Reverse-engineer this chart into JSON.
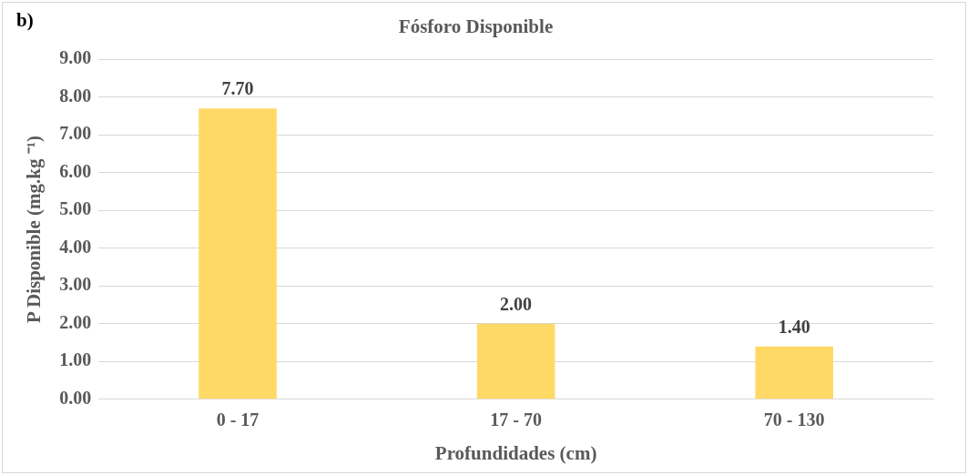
{
  "chart_data": {
    "type": "bar",
    "title": "Fósforo Disponible",
    "xlabel": "Profundidades (cm)",
    "ylabel": "P Disponible (mg.kg ⁻¹)",
    "annotations": [
      "b)"
    ],
    "categories": [
      "0 - 17",
      "17 - 70",
      "70 - 130"
    ],
    "values": [
      7.7,
      2.0,
      1.4
    ],
    "value_labels": [
      "7.70",
      "2.00",
      "1.40"
    ],
    "color": "#ffd966",
    "ylim": [
      0,
      9
    ],
    "yticks": [
      {
        "value": 0,
        "label": "0.00"
      },
      {
        "value": 1,
        "label": "1.00"
      },
      {
        "value": 2,
        "label": "2.00"
      },
      {
        "value": 3,
        "label": "3.00"
      },
      {
        "value": 4,
        "label": "4.00"
      },
      {
        "value": 5,
        "label": "5.00"
      },
      {
        "value": 6,
        "label": "6.00"
      },
      {
        "value": 7,
        "label": "7.00"
      },
      {
        "value": 8,
        "label": "8.00"
      },
      {
        "value": 9,
        "label": "9.00"
      }
    ],
    "grid": "y"
  }
}
